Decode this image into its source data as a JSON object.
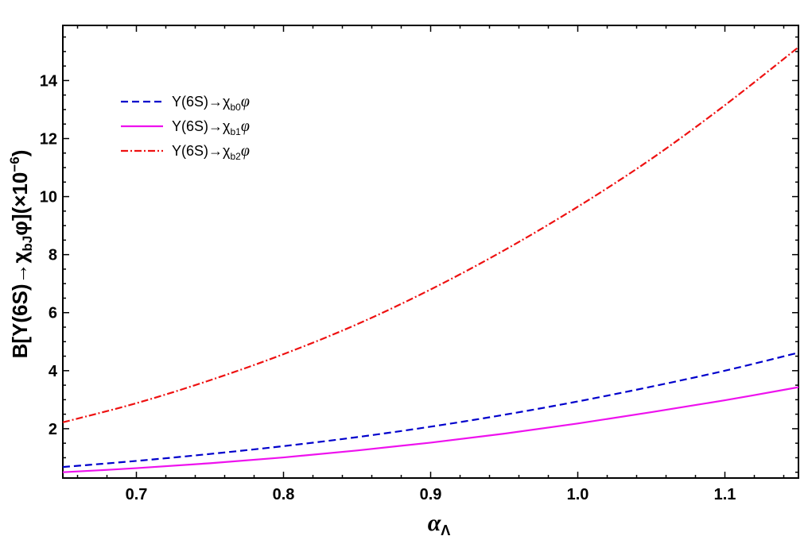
{
  "chart_data": {
    "type": "line",
    "xlabel": "α",
    "xlabel_sub": "Λ",
    "ylabel": "B[Υ(6S)→χ",
    "ylabel_sub": "bJ",
    "ylabel_suffix": "φ](×10",
    "ylabel_sup": "−6",
    "ylabel_end": ")",
    "xlim": [
      0.65,
      1.15
    ],
    "ylim": [
      0.3,
      15.9
    ],
    "xticks": [
      0.7,
      0.8,
      0.9,
      1.0,
      1.1
    ],
    "xtick_labels": [
      "0.7",
      "0.8",
      "0.9",
      "1.0",
      "1.1"
    ],
    "yticks": [
      2,
      4,
      6,
      8,
      10,
      12,
      14
    ],
    "ytick_labels": [
      "2",
      "4",
      "6",
      "8",
      "10",
      "12",
      "14"
    ],
    "grid": false,
    "legend_position": "top-left",
    "x": [
      0.65,
      0.7,
      0.75,
      0.8,
      0.85,
      0.9,
      0.95,
      1.0,
      1.05,
      1.1,
      1.15
    ],
    "series": [
      {
        "key": "chi_b0",
        "legend_prefix": "Υ(6S)→χ",
        "legend_sub": "b0",
        "legend_suffix": "φ",
        "color": "#0000cc",
        "dash": "9,5",
        "values": [
          0.68,
          0.89,
          1.13,
          1.4,
          1.71,
          2.07,
          2.48,
          2.94,
          3.45,
          4.0,
          4.62
        ]
      },
      {
        "key": "chi_b1",
        "legend_prefix": "Υ(6S)→χ",
        "legend_sub": "b1",
        "legend_suffix": "φ",
        "color": "#ee11ee",
        "dash": "",
        "values": [
          0.5,
          0.64,
          0.81,
          1.01,
          1.25,
          1.52,
          1.83,
          2.18,
          2.57,
          2.98,
          3.43
        ]
      },
      {
        "key": "chi_b2",
        "legend_prefix": "Υ(6S)→χ",
        "legend_sub": "b2",
        "legend_suffix": "φ",
        "color": "#ee1111",
        "dash": "9,3,2,3",
        "values": [
          2.22,
          2.88,
          3.67,
          4.57,
          5.6,
          6.8,
          8.15,
          9.65,
          11.3,
          13.15,
          15.15
        ]
      }
    ]
  }
}
